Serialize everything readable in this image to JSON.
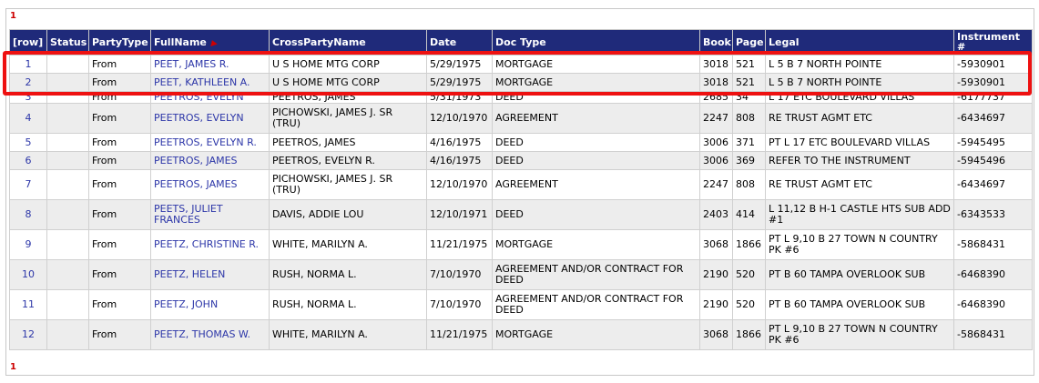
{
  "pager": {
    "top": "1",
    "bottom": "1"
  },
  "columns": [
    "[row]",
    "Status",
    "PartyType",
    "FullName",
    "CrossPartyName",
    "Date",
    "Doc Type",
    "Book",
    "Page",
    "Legal",
    "Instrument #"
  ],
  "sort": {
    "column": "FullName",
    "icon": "sort-ascending-icon",
    "color": "#cc0000"
  },
  "rows": [
    {
      "row": "1",
      "status": "",
      "party_type": "From",
      "full_name": "PEET, JAMES R.",
      "cross_party": "U S HOME MTG CORP",
      "date": "5/29/1975",
      "doc_type": "MORTGAGE",
      "book": "3018",
      "page": "521",
      "legal": "L 5 B 7 NORTH POINTE",
      "instrument": "-5930901"
    },
    {
      "row": "2",
      "status": "",
      "party_type": "From",
      "full_name": "PEET, KATHLEEN A.",
      "cross_party": "U S HOME MTG CORP",
      "date": "5/29/1975",
      "doc_type": "MORTGAGE",
      "book": "3018",
      "page": "521",
      "legal": "L 5 B 7 NORTH POINTE",
      "instrument": "-5930901"
    },
    {
      "row": "3",
      "status": "",
      "party_type": "From",
      "full_name": "PEETROS, EVELYN",
      "cross_party": "PEETROS, JAMES",
      "date": "5/31/1973",
      "doc_type": "DEED",
      "book": "2685",
      "page": "34",
      "legal": "L 17 ETC BOULEVARD VILLAS",
      "instrument": "-6177737"
    },
    {
      "row": "4",
      "status": "",
      "party_type": "From",
      "full_name": "PEETROS, EVELYN",
      "cross_party": "PICHOWSKI, JAMES J. SR (TRU)",
      "date": "12/10/1970",
      "doc_type": "AGREEMENT",
      "book": "2247",
      "page": "808",
      "legal": "RE TRUST AGMT ETC",
      "instrument": "-6434697"
    },
    {
      "row": "5",
      "status": "",
      "party_type": "From",
      "full_name": "PEETROS, EVELYN R.",
      "cross_party": "PEETROS, JAMES",
      "date": "4/16/1975",
      "doc_type": "DEED",
      "book": "3006",
      "page": "371",
      "legal": "PT L 17 ETC BOULEVARD VILLAS",
      "instrument": "-5945495"
    },
    {
      "row": "6",
      "status": "",
      "party_type": "From",
      "full_name": "PEETROS, JAMES",
      "cross_party": "PEETROS, EVELYN R.",
      "date": "4/16/1975",
      "doc_type": "DEED",
      "book": "3006",
      "page": "369",
      "legal": "REFER TO THE INSTRUMENT",
      "instrument": "-5945496"
    },
    {
      "row": "7",
      "status": "",
      "party_type": "From",
      "full_name": "PEETROS, JAMES",
      "cross_party": "PICHOWSKI, JAMES J. SR (TRU)",
      "date": "12/10/1970",
      "doc_type": "AGREEMENT",
      "book": "2247",
      "page": "808",
      "legal": "RE TRUST AGMT ETC",
      "instrument": "-6434697"
    },
    {
      "row": "8",
      "status": "",
      "party_type": "From",
      "full_name": "PEETS, JULIET FRANCES",
      "cross_party": "DAVIS, ADDIE LOU",
      "date": "12/10/1971",
      "doc_type": "DEED",
      "book": "2403",
      "page": "414",
      "legal": "L 11,12 B H-1 CASTLE HTS SUB ADD #1",
      "instrument": "-6343533"
    },
    {
      "row": "9",
      "status": "",
      "party_type": "From",
      "full_name": "PEETZ, CHRISTINE R.",
      "cross_party": "WHITE, MARILYN A.",
      "date": "11/21/1975",
      "doc_type": "MORTGAGE",
      "book": "3068",
      "page": "1866",
      "legal": "PT L 9,10 B 27 TOWN N COUNTRY PK #6",
      "instrument": "-5868431"
    },
    {
      "row": "10",
      "status": "",
      "party_type": "From",
      "full_name": "PEETZ, HELEN",
      "cross_party": "RUSH, NORMA L.",
      "date": "7/10/1970",
      "doc_type": "AGREEMENT AND/OR CONTRACT FOR DEED",
      "book": "2190",
      "page": "520",
      "legal": "PT B 60 TAMPA OVERLOOK SUB",
      "instrument": "-6468390"
    },
    {
      "row": "11",
      "status": "",
      "party_type": "From",
      "full_name": "PEETZ, JOHN",
      "cross_party": "RUSH, NORMA L.",
      "date": "7/10/1970",
      "doc_type": "AGREEMENT AND/OR CONTRACT FOR DEED",
      "book": "2190",
      "page": "520",
      "legal": "PT B 60 TAMPA OVERLOOK SUB",
      "instrument": "-6468390"
    },
    {
      "row": "12",
      "status": "",
      "party_type": "From",
      "full_name": "PEETZ, THOMAS W.",
      "cross_party": "WHITE, MARILYN A.",
      "date": "11/21/1975",
      "doc_type": "MORTGAGE",
      "book": "3068",
      "page": "1866",
      "legal": "PT L 9,10 B 27 TOWN N COUNTRY PK #6",
      "instrument": "-5868431"
    }
  ],
  "colors": {
    "header_bg": "#1f2a7a",
    "link": "#2c36a8",
    "pager": "#cc0000",
    "highlight": "#ee1111"
  }
}
